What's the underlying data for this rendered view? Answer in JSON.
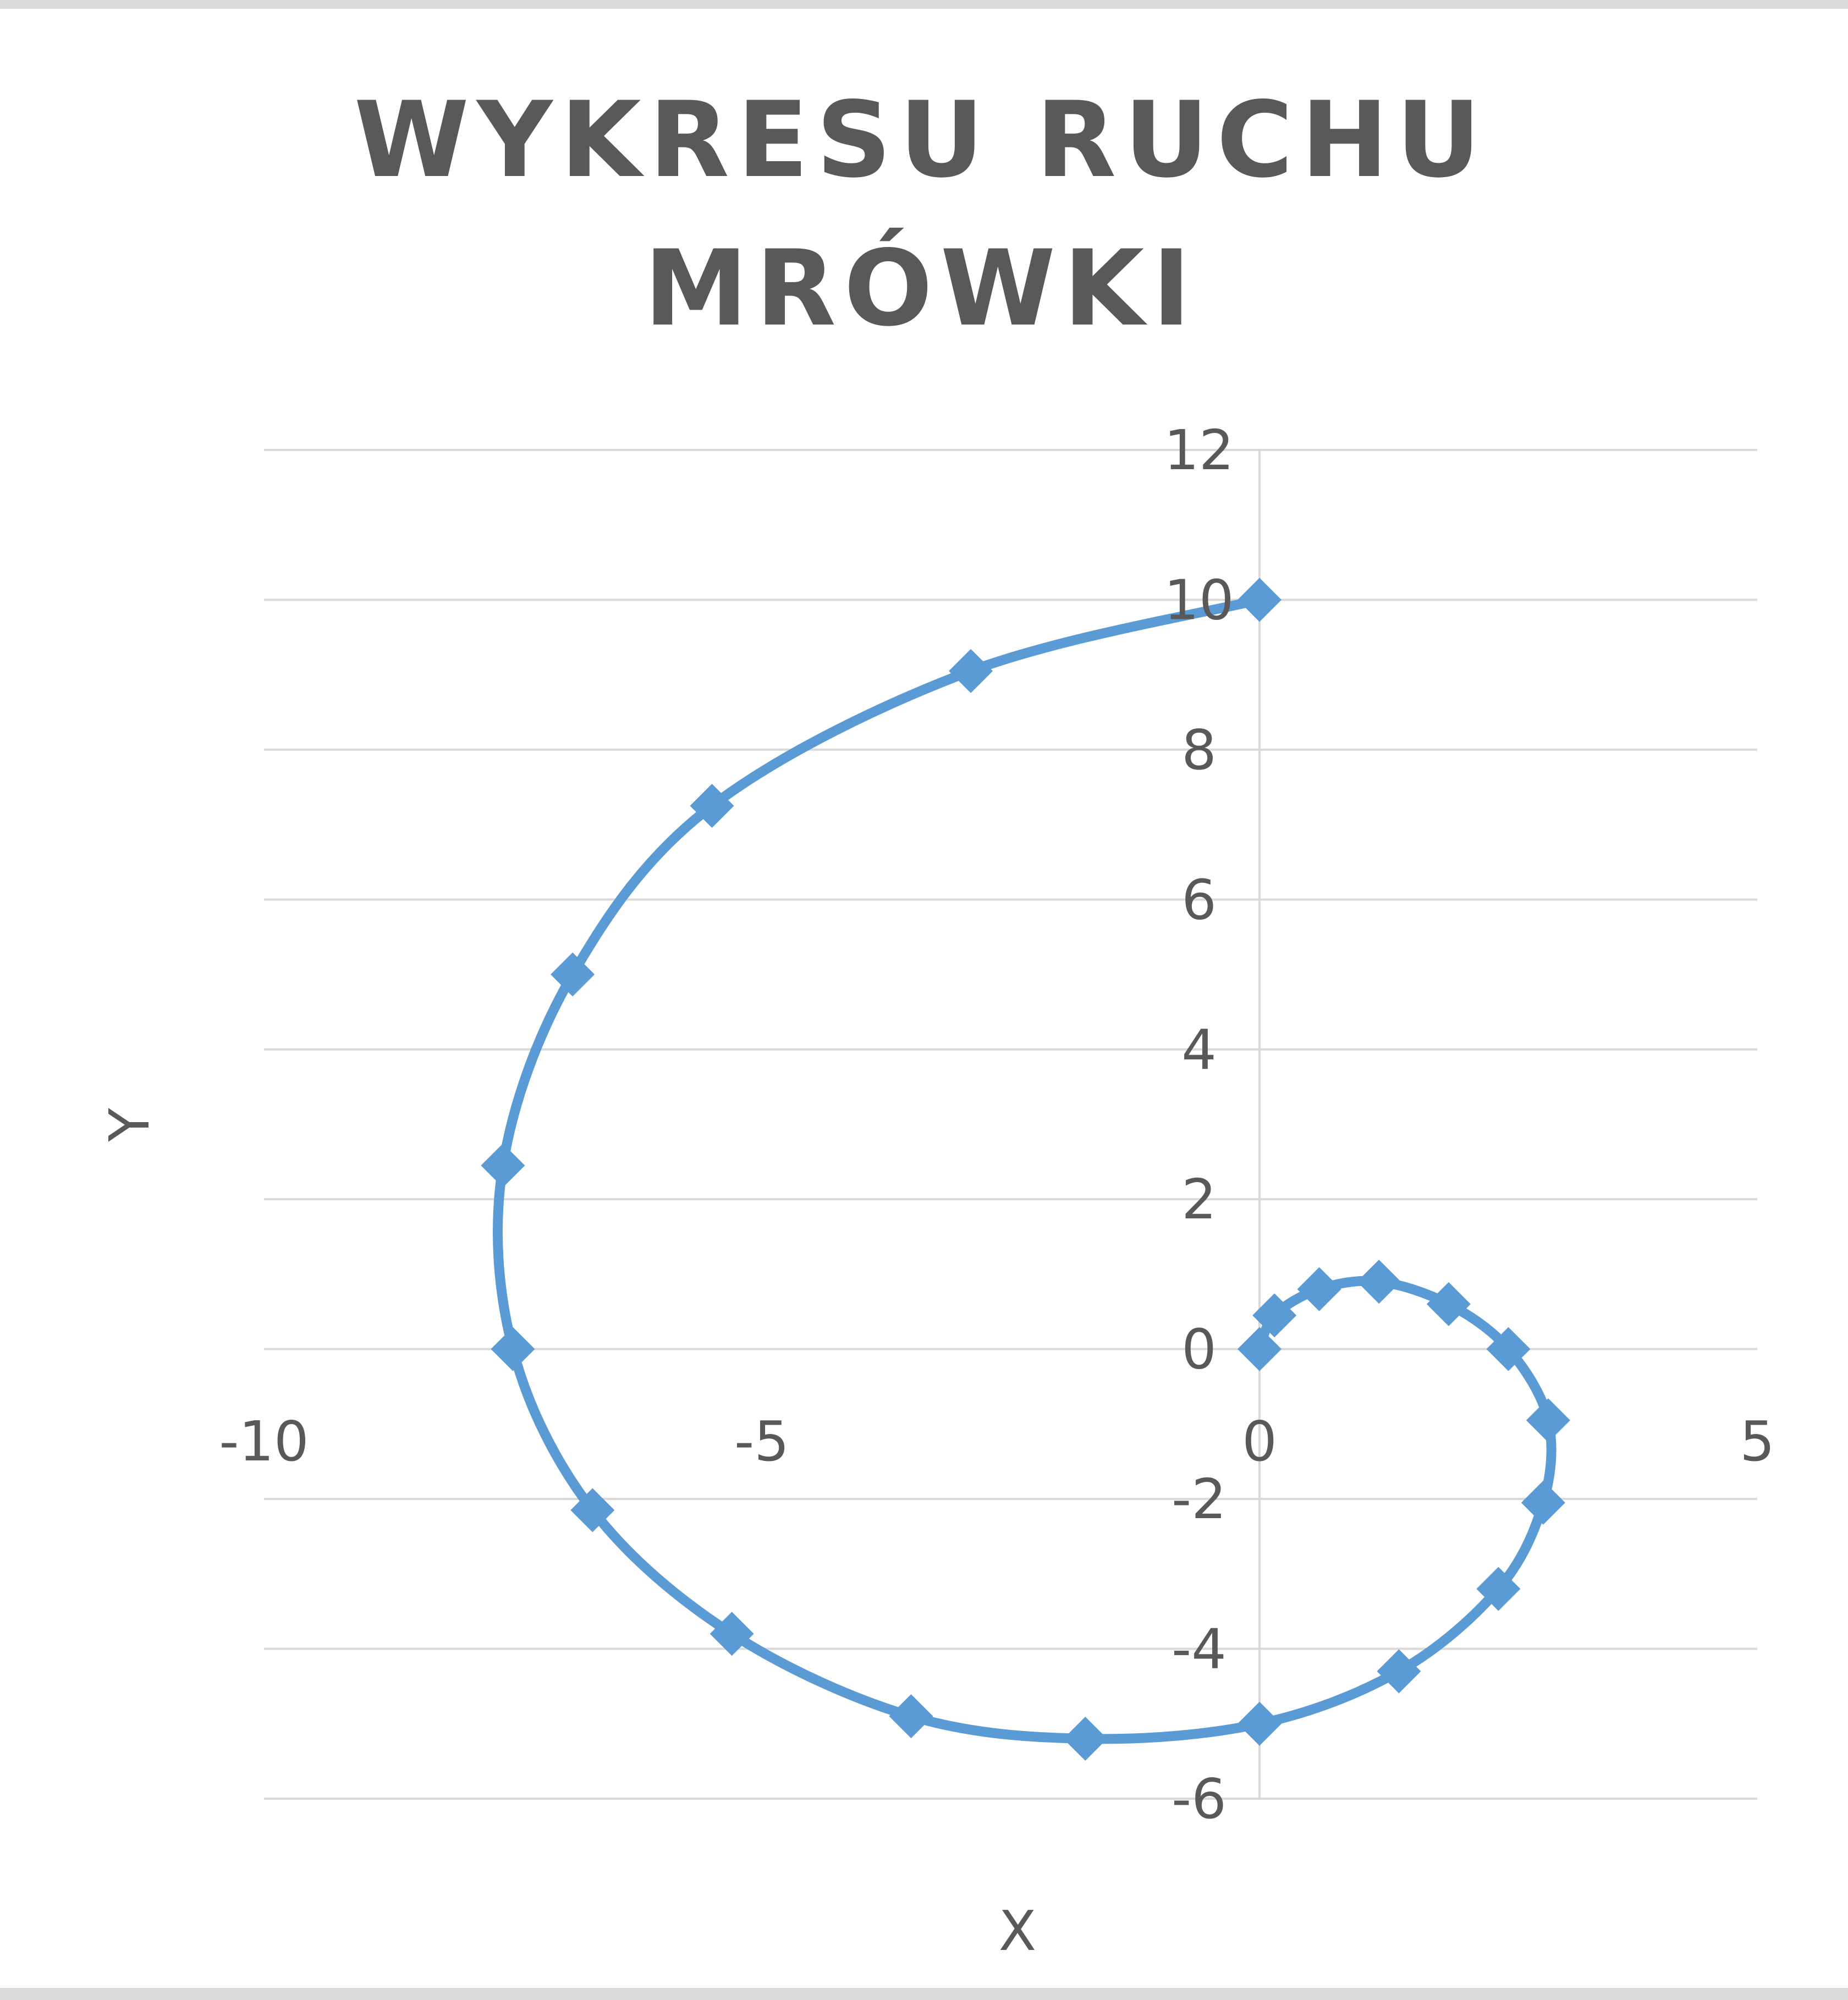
{
  "chart_data": {
    "type": "scatter",
    "title": [
      "WYKRESU RUCHU",
      "MRÓWKI"
    ],
    "xlabel": "X",
    "ylabel": "Y",
    "xlim": [
      -10,
      5
    ],
    "ylim": [
      -6,
      12
    ],
    "xticks": [
      -10,
      -5,
      0,
      5
    ],
    "xtick_labels": [
      "-10",
      "-5",
      "0",
      "5"
    ],
    "yticks": [
      -6,
      -4,
      -2,
      0,
      2,
      4,
      6,
      8,
      10,
      12
    ],
    "ytick_labels": [
      "-6",
      "-4",
      "-2",
      "0",
      "2",
      "4",
      "6",
      "8",
      "10",
      "12"
    ],
    "grid": "horizontal",
    "line_style": "smooth",
    "marker": "diamond",
    "series": [
      {
        "color": "#5b9bd5",
        "x": [
          0,
          0.15,
          0.6,
          1.2,
          1.9,
          2.5,
          2.9,
          2.85,
          2.4,
          1.4,
          0,
          -1.75,
          -3.5,
          -5.3,
          -6.7,
          -7.5,
          -7.6,
          -6.9,
          -5.5,
          -2.9,
          0
        ],
        "y": [
          0,
          0.45,
          0.8,
          0.9,
          0.6,
          0,
          -0.95,
          -2.05,
          -3.2,
          -4.3,
          -5.0,
          -5.2,
          -4.9,
          -3.8,
          -2.15,
          0,
          2.45,
          5.0,
          7.25,
          9.05,
          10.0
        ]
      }
    ]
  }
}
